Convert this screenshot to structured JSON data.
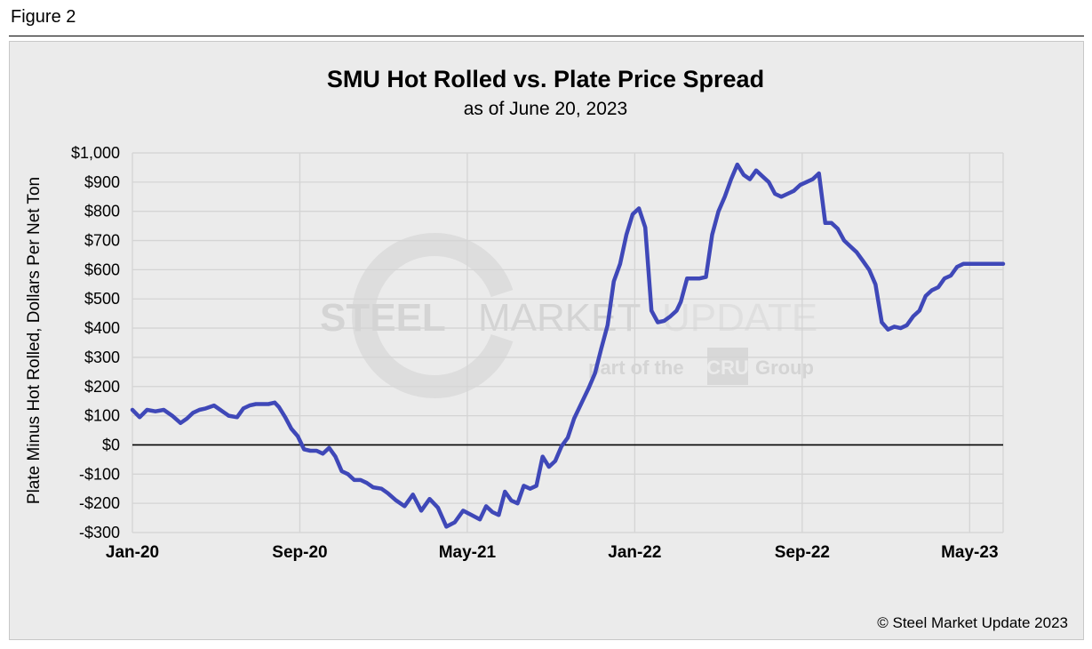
{
  "figure_label": "Figure 2",
  "copyright": "© Steel Market Update 2023",
  "watermark": {
    "brand_bold": "STEEL",
    "brand_light": "MARKET",
    "brand_faint": "UPDATE",
    "tag_prefix": "part of the",
    "tag_logo": "CRU",
    "tag_suffix": "Group"
  },
  "colors": {
    "line": "#3f48b8",
    "panel": "#ebebeb",
    "zero_line": "#000000"
  },
  "chart_data": {
    "type": "line",
    "title": "SMU Hot Rolled vs. Plate Price Spread",
    "subtitle": "as of June 20, 2023",
    "xlabel": "",
    "ylabel": "Plate Minus Hot Rolled, Dollars Per Net Ton",
    "x_unit": "months since Jan-2020",
    "xlim": [
      0,
      41.6
    ],
    "ylim": [
      -300,
      1000
    ],
    "yticks": [
      -300,
      -200,
      -100,
      0,
      100,
      200,
      300,
      400,
      500,
      600,
      700,
      800,
      900,
      1000
    ],
    "ytick_labels": [
      "-$300",
      "-$200",
      "-$100",
      "$0",
      "$100",
      "$200",
      "$300",
      "$400",
      "$500",
      "$600",
      "$700",
      "$800",
      "$900",
      "$1,000"
    ],
    "xticks": [
      0,
      8,
      16,
      24,
      32,
      40
    ],
    "xtick_labels": [
      "Jan-20",
      "Sep-20",
      "May-21",
      "Jan-22",
      "Sep-22",
      "May-23"
    ],
    "grid": true,
    "series": [
      {
        "name": "Plate minus Hot Rolled spread",
        "x": [
          0,
          0.35,
          0.7,
          1.1,
          1.5,
          1.9,
          2.3,
          2.6,
          2.9,
          3.2,
          3.5,
          3.9,
          4.2,
          4.6,
          5.0,
          5.3,
          5.6,
          5.9,
          6.2,
          6.5,
          6.8,
          7.0,
          7.3,
          7.6,
          7.9,
          8.2,
          8.5,
          8.8,
          9.1,
          9.4,
          9.7,
          10.0,
          10.3,
          10.6,
          10.9,
          11.2,
          11.5,
          11.9,
          12.2,
          12.6,
          13.0,
          13.4,
          13.8,
          14.2,
          14.6,
          15.0,
          15.4,
          15.8,
          16.2,
          16.6,
          16.9,
          17.2,
          17.5,
          17.8,
          18.1,
          18.4,
          18.7,
          19.0,
          19.3,
          19.6,
          19.9,
          20.2,
          20.5,
          20.8,
          21.1,
          21.5,
          21.8,
          22.1,
          22.4,
          22.7,
          23.0,
          23.3,
          23.6,
          23.9,
          24.2,
          24.5,
          24.8,
          25.1,
          25.4,
          25.7,
          26.0,
          26.2,
          26.5,
          26.8,
          27.1,
          27.4,
          27.7,
          28.0,
          28.3,
          28.6,
          28.9,
          29.2,
          29.5,
          29.8,
          30.1,
          30.4,
          30.7,
          31.0,
          31.3,
          31.6,
          31.9,
          32.2,
          32.5,
          32.8,
          33.1,
          33.4,
          33.7,
          34.0,
          34.3,
          34.6,
          34.9,
          35.2,
          35.5,
          35.8,
          36.1,
          36.4,
          36.7,
          37.0,
          37.3,
          37.6,
          37.9,
          38.2,
          38.5,
          38.8,
          39.1,
          39.4,
          39.7,
          40.0,
          40.3,
          40.6,
          40.9,
          41.2,
          41.6
        ],
        "values": [
          120,
          95,
          120,
          115,
          120,
          100,
          75,
          90,
          110,
          120,
          125,
          135,
          120,
          100,
          95,
          125,
          135,
          140,
          140,
          140,
          145,
          130,
          95,
          55,
          30,
          -15,
          -20,
          -20,
          -30,
          -10,
          -40,
          -90,
          -100,
          -120,
          -120,
          -130,
          -145,
          -150,
          -165,
          -190,
          -210,
          -170,
          -225,
          -185,
          -215,
          -280,
          -265,
          -225,
          -240,
          -255,
          -210,
          -230,
          -240,
          -160,
          -190,
          -200,
          -140,
          -150,
          -140,
          -40,
          -75,
          -55,
          -5,
          25,
          90,
          150,
          195,
          245,
          330,
          410,
          560,
          620,
          720,
          790,
          810,
          745,
          460,
          420,
          425,
          440,
          460,
          490,
          570,
          570,
          570,
          575,
          720,
          800,
          850,
          910,
          960,
          925,
          910,
          940,
          920,
          900,
          860,
          850,
          860,
          870,
          890,
          900,
          910,
          930,
          760,
          760,
          740,
          700,
          680,
          660,
          630,
          600,
          550,
          420,
          395,
          405,
          400,
          410,
          440,
          460,
          510,
          530,
          540,
          570,
          580,
          610,
          620,
          620,
          620,
          620,
          620,
          620,
          620
        ]
      }
    ]
  }
}
